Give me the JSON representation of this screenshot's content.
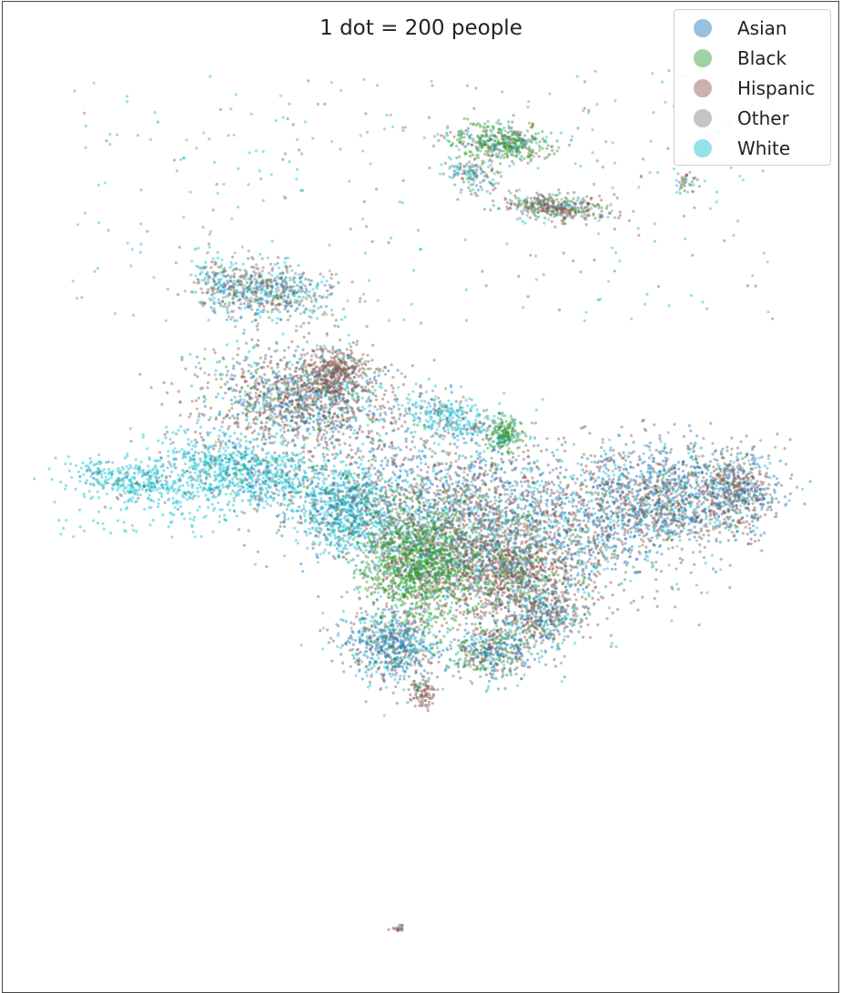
{
  "chart_data": {
    "type": "scatter",
    "title": "1 dot = 200 people",
    "xlabel": "",
    "ylabel": "",
    "grid": false,
    "legend_position": "top-right",
    "marker_alpha": 0.45,
    "series": [
      {
        "name": "Asian",
        "color": "#1f77b4"
      },
      {
        "name": "Black",
        "color": "#2ca02c"
      },
      {
        "name": "Hispanic",
        "color": "#8c564b"
      },
      {
        "name": "Other",
        "color": "#7f7f7f"
      },
      {
        "name": "White",
        "color": "#17becf"
      }
    ]
  }
}
